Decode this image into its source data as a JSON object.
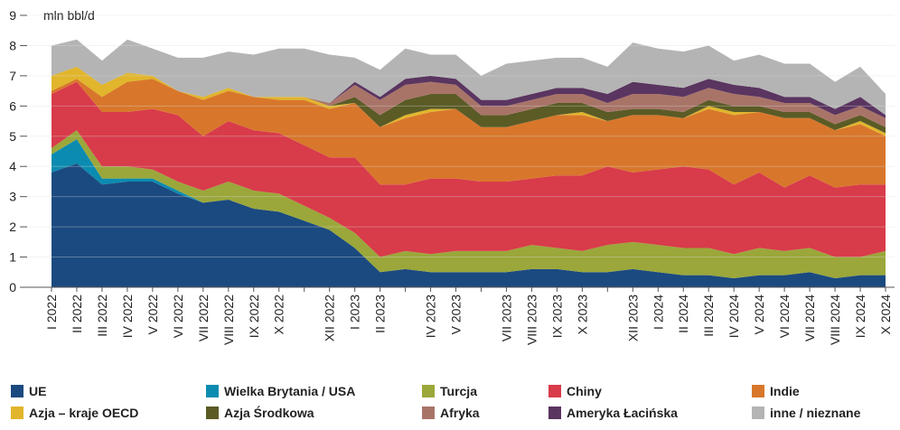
{
  "chart_data": {
    "type": "stacked_area",
    "y_label": "mln bbl/d",
    "categories": [
      "I 2022",
      "II 2022",
      "III 2022",
      "IV 2022",
      "V 2022",
      "VI 2022",
      "VII 2022",
      "VIII 2022",
      "IX 2022",
      "X 2022",
      null,
      "XII 2022",
      "I 2023",
      "II 2023",
      null,
      "IV 2023",
      "V 2023",
      null,
      "VII 2023",
      "VIII 2023",
      "IX 2023",
      "X 2023",
      null,
      "XII 2023",
      "I 2024",
      "II 2024",
      "III 2024",
      "IV 2024",
      "V 2024",
      "VI 2024",
      "VII 2024",
      "VIII 2024",
      "IX 2024",
      "X 2024"
    ],
    "ylim": [
      0,
      9
    ],
    "yticks": [
      0,
      1,
      2,
      3,
      4,
      5,
      6,
      7,
      8,
      9
    ],
    "grid": true,
    "series": [
      {
        "name": "UE",
        "color": "#1b4a80",
        "values": [
          3.8,
          4.1,
          3.4,
          3.5,
          3.5,
          3.1,
          2.8,
          2.9,
          2.6,
          2.5,
          2.2,
          1.9,
          1.3,
          0.5,
          0.6,
          0.5,
          0.5,
          0.5,
          0.5,
          0.6,
          0.6,
          0.5,
          0.5,
          0.6,
          0.5,
          0.4,
          0.4,
          0.3,
          0.4,
          0.4,
          0.5,
          0.3,
          0.4,
          0.4
        ]
      },
      {
        "name": "Wielka Brytania / USA",
        "color": "#0c8bb0",
        "values": [
          0.6,
          0.8,
          0.2,
          0.1,
          0.1,
          0.1,
          0,
          0,
          0,
          0,
          0,
          0,
          0,
          0,
          0,
          0,
          0,
          0,
          0,
          0,
          0,
          0,
          0,
          0,
          0,
          0,
          0,
          0,
          0,
          0,
          0,
          0,
          0,
          0
        ]
      },
      {
        "name": "Turcja",
        "color": "#9ba73a",
        "values": [
          0.2,
          0.3,
          0.4,
          0.4,
          0.3,
          0.3,
          0.4,
          0.6,
          0.6,
          0.6,
          0.5,
          0.4,
          0.5,
          0.5,
          0.6,
          0.6,
          0.7,
          0.7,
          0.7,
          0.8,
          0.7,
          0.7,
          0.9,
          0.9,
          0.9,
          0.9,
          0.9,
          0.8,
          0.9,
          0.8,
          0.8,
          0.7,
          0.6,
          0.8
        ]
      },
      {
        "name": "Chiny",
        "color": "#d83b4a",
        "values": [
          1.8,
          1.6,
          1.8,
          1.8,
          2.0,
          2.2,
          1.8,
          2.0,
          2.0,
          2.0,
          2.0,
          2.0,
          2.5,
          2.4,
          2.2,
          2.5,
          2.4,
          2.3,
          2.3,
          2.2,
          2.4,
          2.5,
          2.6,
          2.3,
          2.5,
          2.7,
          2.6,
          2.3,
          2.5,
          2.1,
          2.4,
          2.3,
          2.4,
          2.2
        ]
      },
      {
        "name": "Indie",
        "color": "#d8772b",
        "values": [
          0.1,
          0.1,
          0.5,
          1.0,
          1.0,
          0.8,
          1.2,
          1.0,
          1.1,
          1.1,
          1.5,
          1.6,
          1.8,
          1.9,
          2.2,
          2.2,
          2.3,
          1.8,
          1.8,
          1.9,
          2.0,
          2.0,
          1.5,
          1.9,
          1.8,
          1.6,
          2.0,
          2.3,
          2.0,
          2.3,
          1.9,
          1.9,
          2.0,
          1.6
        ]
      },
      {
        "name": "Azja – kraje OECD",
        "color": "#e1b52c",
        "values": [
          0.5,
          0.4,
          0.4,
          0.3,
          0.1,
          0,
          0.1,
          0.1,
          0,
          0.1,
          0.1,
          0.1,
          0,
          0,
          0.1,
          0.1,
          0,
          0,
          0,
          0,
          0,
          0.1,
          0,
          0,
          0,
          0,
          0.1,
          0.1,
          0,
          0,
          0,
          0,
          0.1,
          0.1
        ]
      },
      {
        "name": "Azja Środkowa",
        "color": "#5b5b26",
        "values": [
          0,
          0,
          0,
          0,
          0,
          0,
          0,
          0,
          0,
          0,
          0,
          0,
          0.2,
          0.4,
          0.5,
          0.5,
          0.5,
          0.4,
          0.4,
          0.4,
          0.4,
          0.3,
          0.3,
          0.2,
          0.2,
          0.2,
          0.2,
          0.2,
          0.2,
          0.2,
          0.2,
          0.2,
          0.2,
          0.2
        ]
      },
      {
        "name": "Afryka",
        "color": "#a97468",
        "values": [
          0,
          0,
          0,
          0,
          0,
          0,
          0,
          0,
          0,
          0,
          0,
          0.1,
          0.4,
          0.5,
          0.5,
          0.4,
          0.3,
          0.3,
          0.3,
          0.3,
          0.3,
          0.3,
          0.3,
          0.5,
          0.5,
          0.5,
          0.4,
          0.4,
          0.3,
          0.3,
          0.3,
          0.3,
          0.3,
          0.3
        ]
      },
      {
        "name": "Ameryka Łacińska",
        "color": "#5a3560",
        "values": [
          0,
          0,
          0,
          0,
          0,
          0,
          0,
          0,
          0,
          0,
          0,
          0,
          0.1,
          0.1,
          0.2,
          0.2,
          0.2,
          0.2,
          0.2,
          0.2,
          0.2,
          0.2,
          0.3,
          0.4,
          0.3,
          0.3,
          0.3,
          0.3,
          0.3,
          0.2,
          0.2,
          0.2,
          0.3,
          0.1
        ]
      },
      {
        "name": "inne / nieznane",
        "color": "#b4b4b4",
        "values": [
          1.0,
          0.9,
          0.8,
          1.1,
          0.9,
          1.1,
          1.3,
          1.2,
          1.4,
          1.6,
          1.6,
          1.6,
          0.8,
          0.9,
          1.0,
          0.7,
          0.8,
          0.8,
          1.2,
          1.1,
          1.0,
          1.0,
          0.9,
          1.3,
          1.2,
          1.2,
          1.1,
          0.8,
          1.1,
          1.1,
          1.1,
          0.9,
          1.0,
          0.7
        ]
      }
    ]
  }
}
